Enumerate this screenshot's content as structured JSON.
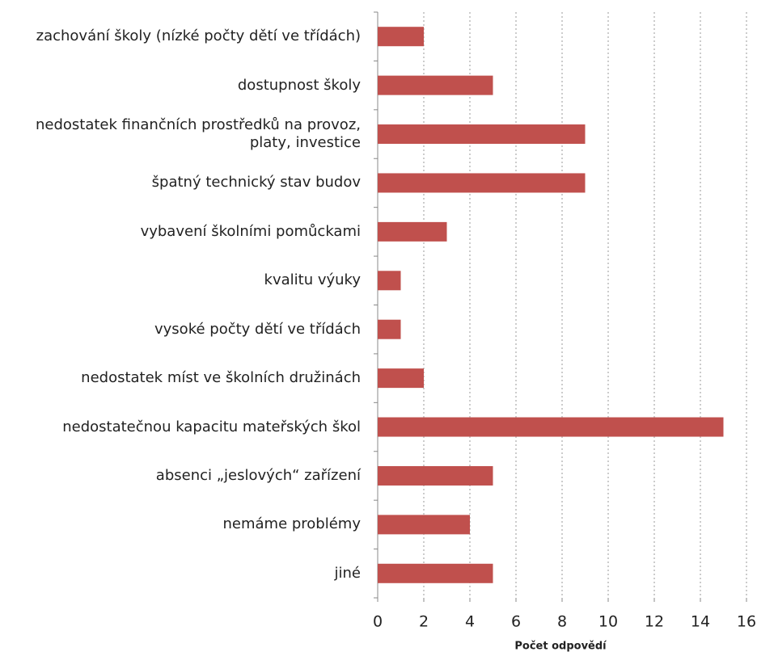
{
  "chart_data": {
    "type": "barh",
    "x_label": "Počet odpovědí",
    "categories": [
      "zachování školy (nízké počty dětí ve třídách)",
      "dostupnost školy",
      "nedostatek finančních prostředků na provoz,\nplaty, investice",
      "špatný technický stav budov",
      "vybavení školními pomůckami",
      "kvalitu výuky",
      "vysoké počty dětí ve třídách",
      "nedostatek míst ve školních družinách",
      "nedostatečnou kapacitu mateřských škol",
      "absenci „jeslových“ zařízení",
      "nemáme problémy",
      "jiné"
    ],
    "values": [
      2,
      5,
      9,
      9,
      3,
      1,
      1,
      2,
      15,
      5,
      4,
      5
    ],
    "color": "#c0504d",
    "xlim": [
      0,
      16
    ],
    "xticks": [
      0,
      2,
      4,
      6,
      8,
      10,
      12,
      14,
      16
    ],
    "grid": true
  }
}
